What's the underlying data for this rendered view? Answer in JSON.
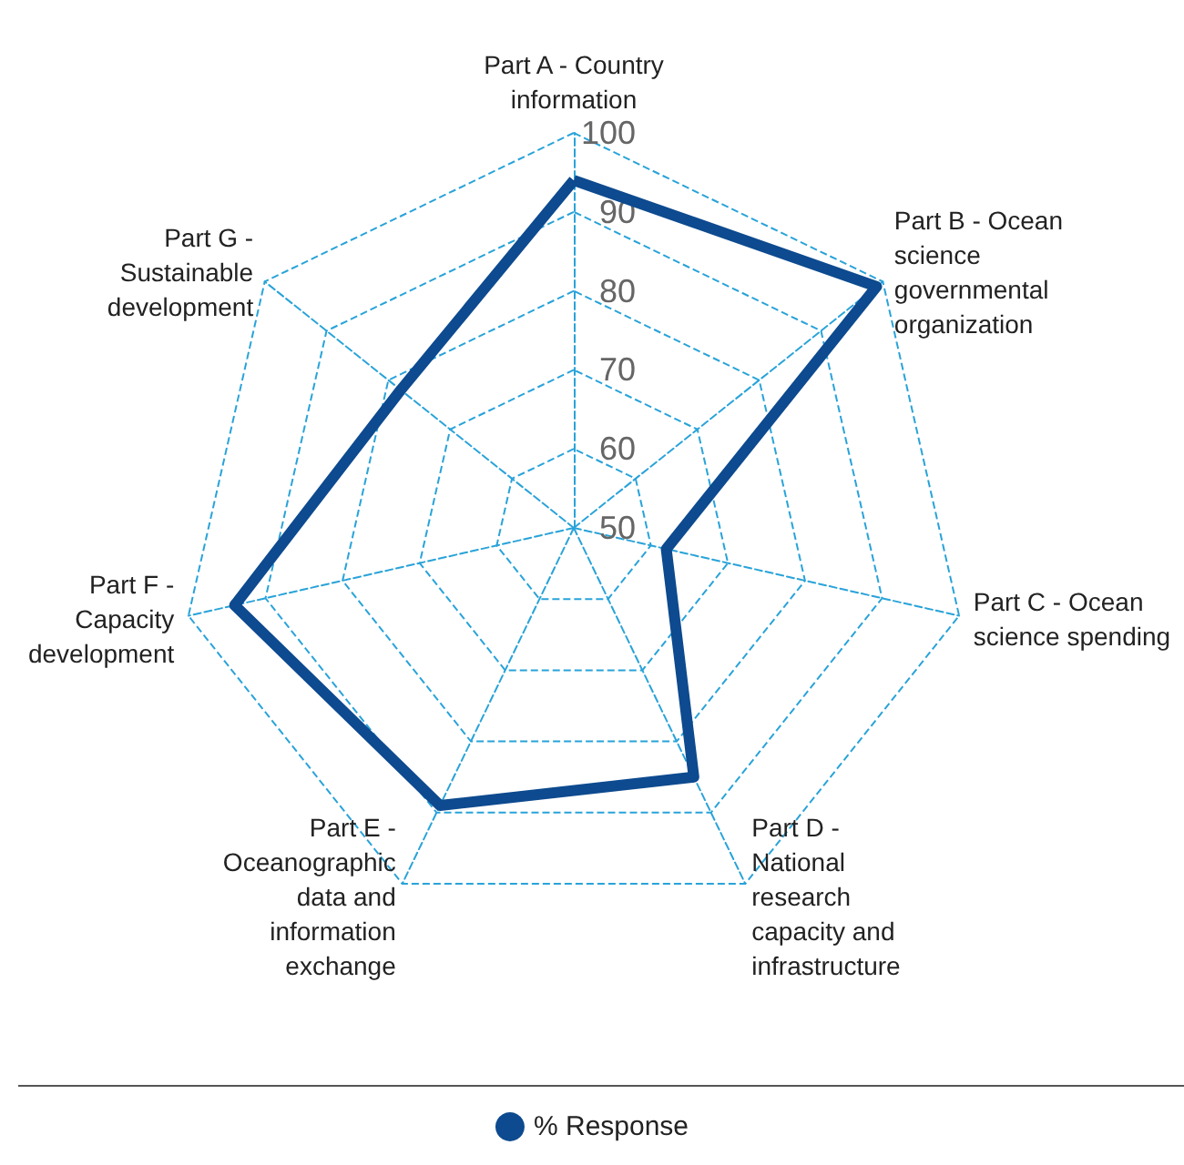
{
  "chart_data": {
    "type": "radar",
    "categories": [
      "Part A - Country information",
      "Part B - Ocean science governmental organization",
      "Part C - Ocean science spending",
      "Part D - National research capacity and infrastructure",
      "Part E - Oceanographic data and information exchange",
      "Part F - Capacity development",
      "Part G - Sustainable development"
    ],
    "series": [
      {
        "name": "% Response",
        "color": "#0d4a8f",
        "values": [
          94,
          99,
          62,
          85,
          89,
          94,
          78
        ]
      }
    ],
    "ylim": [
      50,
      100
    ],
    "yticks": [
      50,
      60,
      70,
      80,
      90,
      100
    ],
    "grid": true,
    "legend": "bottom",
    "marker": "none",
    "line_style": "solid"
  }
}
